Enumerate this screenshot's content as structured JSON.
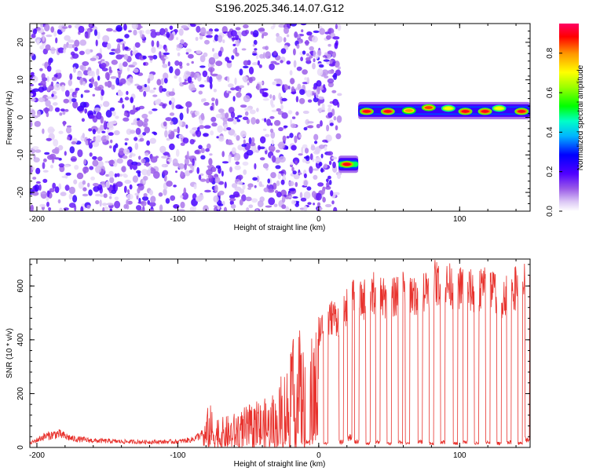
{
  "figure": {
    "title": "S196.2025.346.14.07.G12"
  },
  "chart_data": [
    {
      "type": "heatmap",
      "name": "spectrogram",
      "xlabel": "Height of straight line (km)",
      "ylabel": "Frequency (Hz)",
      "xlim": [
        -205,
        150
      ],
      "ylim": [
        -25,
        25
      ],
      "xticks": [
        -200,
        -100,
        0,
        100
      ],
      "yticks": [
        -20,
        -10,
        0,
        10,
        20
      ],
      "colorbar": {
        "label": "Normalized spectral amplitude",
        "range": [
          0,
          0.95
        ],
        "ticks": [
          "0.0",
          "0.2",
          "0.4",
          "0.6",
          "0.8"
        ],
        "tick_values": [
          0,
          0.2,
          0.4,
          0.6,
          0.8
        ]
      },
      "noise_region": {
        "x_range": [
          -205,
          15
        ],
        "y_range": [
          -25,
          25
        ],
        "amplitude_max": 0.2
      },
      "signal_segments": [
        {
          "x_start": 14,
          "x_end": 28,
          "frequency": -12.5,
          "amplitude": 0.9
        },
        {
          "x_start": 28,
          "x_end": 150,
          "frequency": 1.8,
          "amplitude": 0.4
        }
      ],
      "peaks": [
        {
          "x": 20,
          "frequency": -12.5,
          "amplitude": 0.9
        },
        {
          "x": 34,
          "frequency": 1.6,
          "amplitude": 0.9
        },
        {
          "x": 49,
          "frequency": 1.6,
          "amplitude": 0.9
        },
        {
          "x": 64,
          "frequency": 1.8,
          "amplitude": 0.8
        },
        {
          "x": 78,
          "frequency": 2.6,
          "amplitude": 0.85
        },
        {
          "x": 92,
          "frequency": 2.4,
          "amplitude": 0.7
        },
        {
          "x": 104,
          "frequency": 1.6,
          "amplitude": 0.9
        },
        {
          "x": 118,
          "frequency": 1.6,
          "amplitude": 0.9
        },
        {
          "x": 128,
          "frequency": 2.4,
          "amplitude": 0.7
        },
        {
          "x": 144,
          "frequency": 1.6,
          "amplitude": 0.9
        }
      ]
    },
    {
      "type": "line",
      "name": "snr",
      "xlabel": "Height of straight line (km)",
      "ylabel": "SNR (10 * v/v)",
      "xlim": [
        -205,
        150
      ],
      "ylim": [
        0,
        700
      ],
      "xticks": [
        -200,
        -100,
        0,
        100
      ],
      "yticks": [
        0,
        200,
        400,
        600
      ],
      "color": "#e8322d",
      "series": [
        {
          "name": "SNR upper envelope",
          "x": [
            -205,
            -195,
            -185,
            -175,
            -160,
            -140,
            -120,
            -100,
            -90,
            -82,
            -78,
            -70,
            -60,
            -50,
            -40,
            -30,
            -25,
            -20,
            -15,
            -10,
            -5,
            0,
            5,
            10,
            15,
            20,
            25,
            30,
            40,
            50,
            60,
            70,
            80,
            90,
            100,
            110,
            120,
            130,
            140,
            150
          ],
          "values": [
            20,
            55,
            70,
            45,
            35,
            30,
            28,
            30,
            40,
            70,
            170,
            110,
            130,
            160,
            180,
            200,
            300,
            360,
            480,
            360,
            420,
            500,
            520,
            560,
            540,
            600,
            640,
            620,
            660,
            610,
            690,
            640,
            700,
            690,
            680,
            660,
            690,
            640,
            680,
            690
          ]
        },
        {
          "name": "SNR dropouts",
          "x": [
            -8,
            5,
            16,
            22,
            27,
            35,
            42,
            50,
            58,
            63,
            72,
            80,
            88,
            97,
            104,
            112,
            120,
            128,
            135,
            143,
            148
          ],
          "values": [
            20,
            15,
            20,
            40,
            20,
            15,
            20,
            15,
            20,
            15,
            20,
            15,
            20,
            15,
            20,
            15,
            20,
            15,
            20,
            15,
            30
          ]
        }
      ]
    }
  ]
}
